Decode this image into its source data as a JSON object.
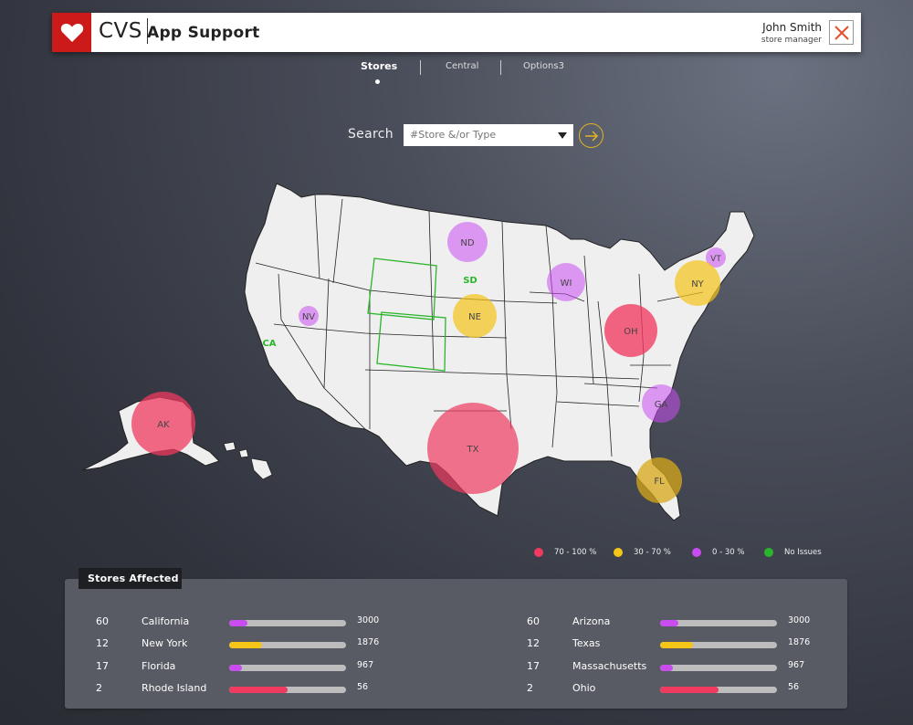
{
  "header": {
    "brand": "CVS",
    "app_title": "App Support",
    "user_name": "John Smith",
    "user_role": "store manager"
  },
  "tabs": [
    {
      "label": "Stores",
      "active": true
    },
    {
      "label": "Central",
      "active": false
    },
    {
      "label": "Options3",
      "active": false
    }
  ],
  "search": {
    "label": "Search",
    "placeholder": "#Store &/or Type"
  },
  "colors": {
    "high": "#f03a5f",
    "medium": "#f5c518",
    "low": "#c84cf0",
    "none": "#2bb52b",
    "brand": "#cc1a1a"
  },
  "map": {
    "markers": [
      {
        "label": "AK",
        "level": "high"
      },
      {
        "label": "TX",
        "level": "high"
      },
      {
        "label": "OH",
        "level": "high"
      },
      {
        "label": "ND",
        "level": "low"
      },
      {
        "label": "WI",
        "level": "low"
      },
      {
        "label": "NV",
        "level": "low"
      },
      {
        "label": "GA",
        "level": "low"
      },
      {
        "label": "VT",
        "level": "low"
      },
      {
        "label": "NE",
        "level": "medium"
      },
      {
        "label": "NY",
        "level": "medium"
      },
      {
        "label": "FL",
        "level": "medium"
      }
    ],
    "no_issue_labels": [
      "SD",
      "CA"
    ]
  },
  "legend": [
    {
      "label": "70 - 100 %",
      "level": "high"
    },
    {
      "label": "30 - 70 %",
      "level": "medium"
    },
    {
      "label": "0 - 30 %",
      "level": "low"
    },
    {
      "label": "No Issues",
      "level": "none"
    }
  ],
  "stores_affected": {
    "title": "Stores Affected",
    "left": [
      {
        "count": "60",
        "name": "California",
        "total": "3000",
        "level": "low",
        "fill": 0.16
      },
      {
        "count": "12",
        "name": "New York",
        "total": "1876",
        "level": "medium",
        "fill": 0.28
      },
      {
        "count": "17",
        "name": "Florida",
        "total": "967",
        "level": "low",
        "fill": 0.11
      },
      {
        "count": "2",
        "name": "Rhode Island",
        "total": "56",
        "level": "high",
        "fill": 0.5
      }
    ],
    "right": [
      {
        "count": "60",
        "name": "Arizona",
        "total": "3000",
        "level": "low",
        "fill": 0.16
      },
      {
        "count": "12",
        "name": "Texas",
        "total": "1876",
        "level": "medium",
        "fill": 0.28
      },
      {
        "count": "17",
        "name": "Massachusetts",
        "total": "967",
        "level": "low",
        "fill": 0.11
      },
      {
        "count": "2",
        "name": "Ohio",
        "total": "56",
        "level": "high",
        "fill": 0.5
      }
    ]
  }
}
